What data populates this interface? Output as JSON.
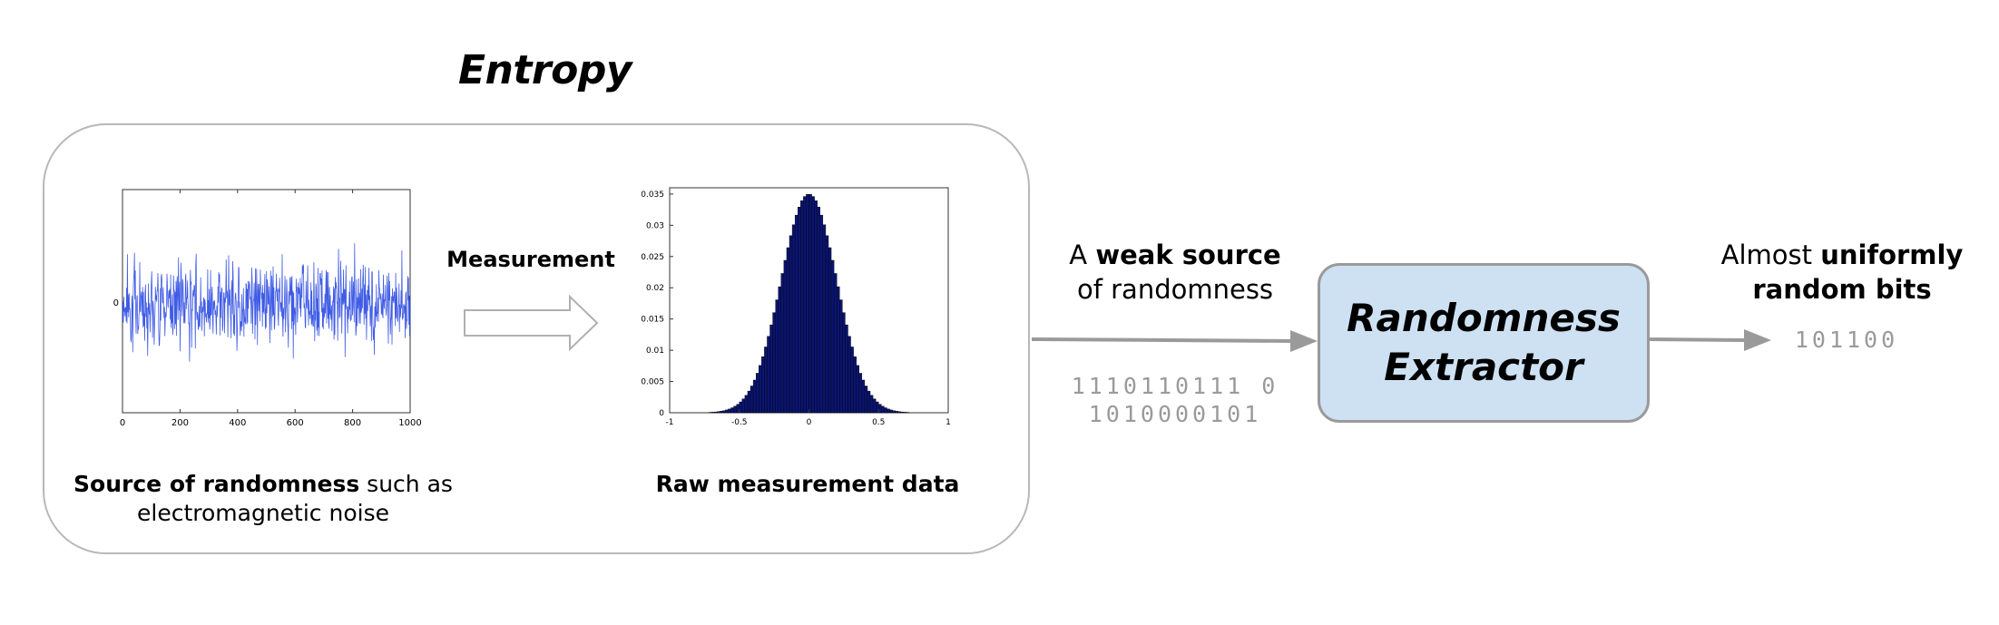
{
  "title": "Entropy",
  "source_caption_bold": "Source of randomness",
  "source_caption_rest_1": " such as",
  "source_caption_rest_2": "electromagnetic noise",
  "measurement_label": "Measurement",
  "raw_caption": "Raw measurement data",
  "weak_prefix": "A ",
  "weak_bold": "weak source",
  "weak_rest": "of randomness",
  "bits_in_line1": "1110110111 0",
  "bits_in_line2": "1010000101",
  "extractor_line1": "Randomness",
  "extractor_line2": "Extractor",
  "uniform_prefix": "Almost ",
  "uniform_bold_1": "uniformly",
  "uniform_bold_2": "random bits",
  "bits_out": "101100",
  "colors": {
    "arrow": "#9a9a9a",
    "extractor_fill": "#cde1f2",
    "noise": "#1f3fe0",
    "histogram": "#0a1470"
  },
  "chart_data": [
    {
      "type": "line",
      "series_desc": "noise signal",
      "x_ticks": [
        "0",
        "200",
        "400",
        "600",
        "800",
        "1000"
      ],
      "y_ticks": [
        "0"
      ],
      "xlim": [
        0,
        1000
      ]
    },
    {
      "type": "bar",
      "x_ticks": [
        "-1",
        "-0.5",
        "0",
        "0.5",
        "1"
      ],
      "y_ticks": [
        "0",
        "0.005",
        "0.01",
        "0.015",
        "0.02",
        "0.025",
        "0.03",
        "0.035"
      ],
      "xlim": [
        -1,
        1
      ],
      "ylim": [
        0,
        0.036
      ],
      "distribution": {
        "mean": 0,
        "std": 0.2,
        "peak": 0.035
      }
    }
  ]
}
